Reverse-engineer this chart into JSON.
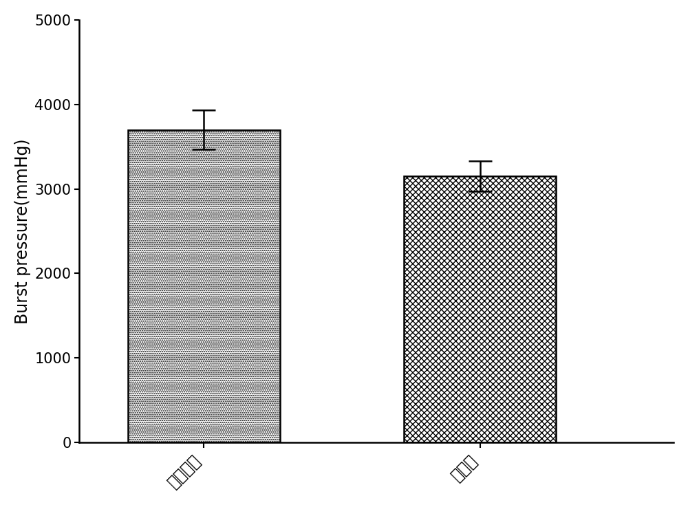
{
  "categories": [
    "未脆细胞",
    "脆细胞"
  ],
  "values": [
    3700,
    3150
  ],
  "errors": [
    230,
    180
  ],
  "ylim": [
    0,
    5000
  ],
  "yticks": [
    0,
    1000,
    2000,
    3000,
    4000,
    5000
  ],
  "ylabel": "Burst pressure(mmHg)",
  "bar_width": 0.55,
  "bar_positions": [
    1,
    2
  ],
  "background_color": "#ffffff",
  "ylabel_fontsize": 17,
  "tick_fontsize": 15,
  "xlabel_fontsize": 17,
  "edge_color": "#000000",
  "bar_facecolor": "#ffffff",
  "ecolor": "#000000",
  "capsize": 12,
  "linewidth": 1.8
}
